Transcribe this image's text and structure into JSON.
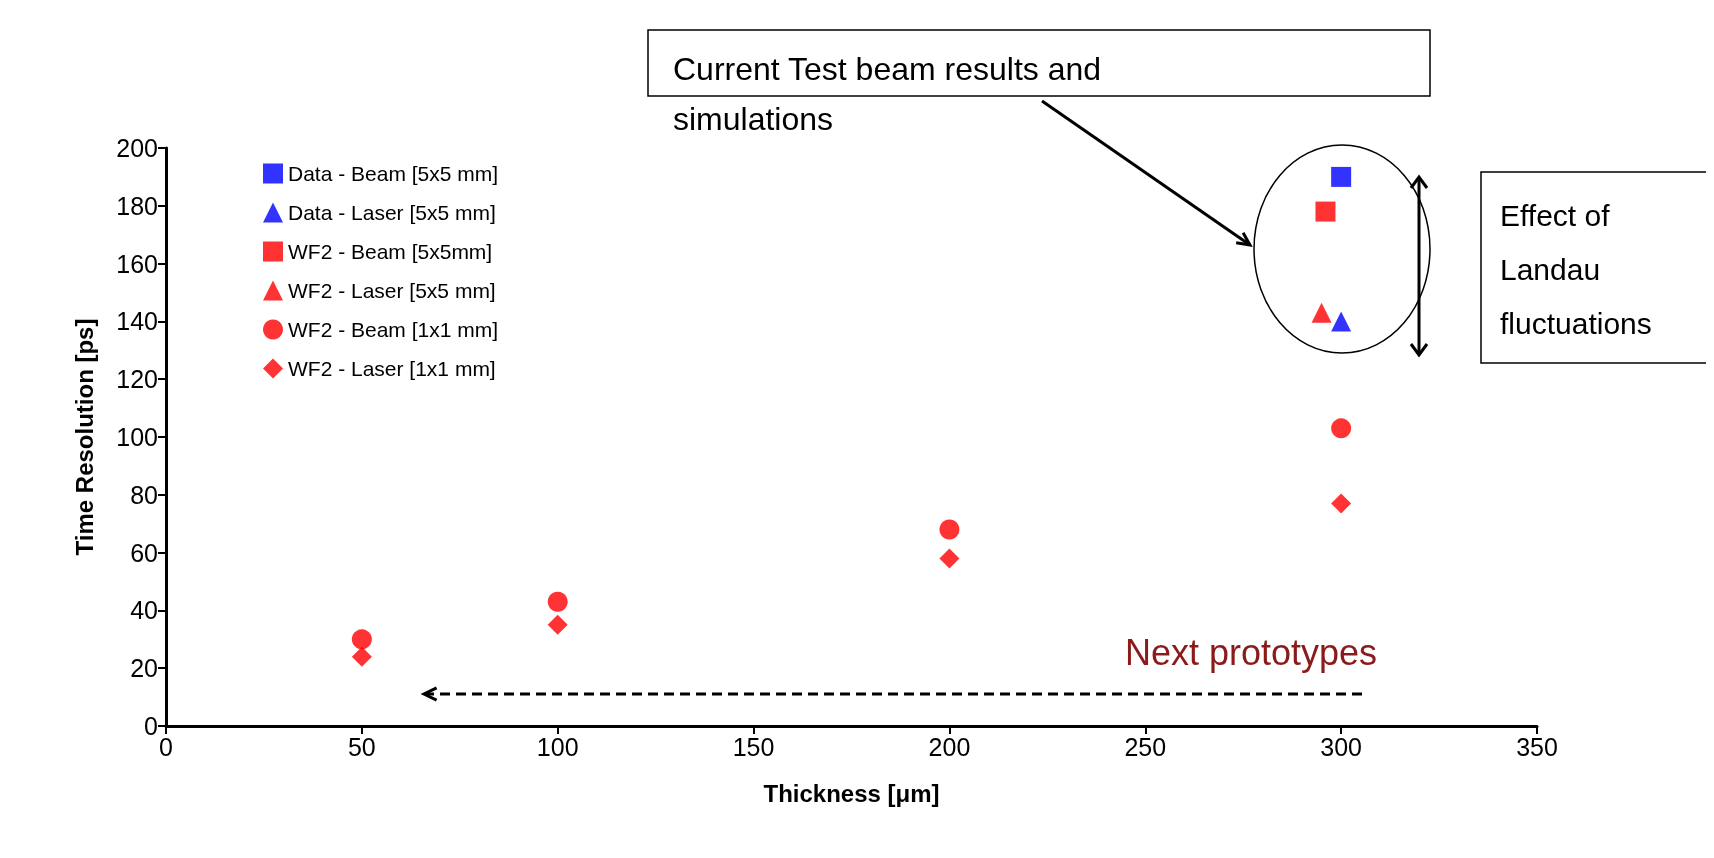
{
  "chart_data": {
    "type": "scatter",
    "xlabel": "Thickness [μm]",
    "ylabel": "Time Resolution [ps]",
    "xlim": [
      0,
      350
    ],
    "xticks": [
      0,
      50,
      100,
      150,
      200,
      250,
      300,
      350
    ],
    "ylim": [
      0,
      200
    ],
    "yticks": [
      0,
      20,
      40,
      60,
      80,
      100,
      120,
      140,
      160,
      180,
      200
    ],
    "grid": false,
    "legend": "top left",
    "series": [
      {
        "name": "Data - Beam [5x5 mm]",
        "color": "#0000ff",
        "marker": "square",
        "x": [
          300
        ],
        "values": [
          190
        ]
      },
      {
        "name": "Data - Laser [5x5 mm]",
        "color": "#0000ff",
        "marker": "triangle",
        "x": [
          300
        ],
        "values": [
          140
        ]
      },
      {
        "name": "WF2 - Beam [5x5mm]",
        "color": "#ff0000",
        "marker": "square",
        "x": [
          296
        ],
        "values": [
          178
        ]
      },
      {
        "name": "WF2 - Laser [5x5 mm]",
        "color": "#ff0000",
        "marker": "triangle",
        "x": [
          295
        ],
        "values": [
          143
        ]
      },
      {
        "name": "WF2 - Beam [1x1 mm]",
        "color": "#ff0000",
        "marker": "circle",
        "x": [
          50,
          100,
          200,
          300
        ],
        "values": [
          30,
          43,
          68,
          103
        ]
      },
      {
        "name": "WF2 - Laser [1x1 mm]",
        "color": "#ff0000",
        "marker": "diamond",
        "x": [
          50,
          100,
          200,
          300
        ],
        "values": [
          24,
          35,
          58,
          77
        ]
      }
    ],
    "annotations": [
      "Current Test beam results and simulations",
      "Effect of Landau fluctuations",
      "Next prototypes"
    ]
  }
}
